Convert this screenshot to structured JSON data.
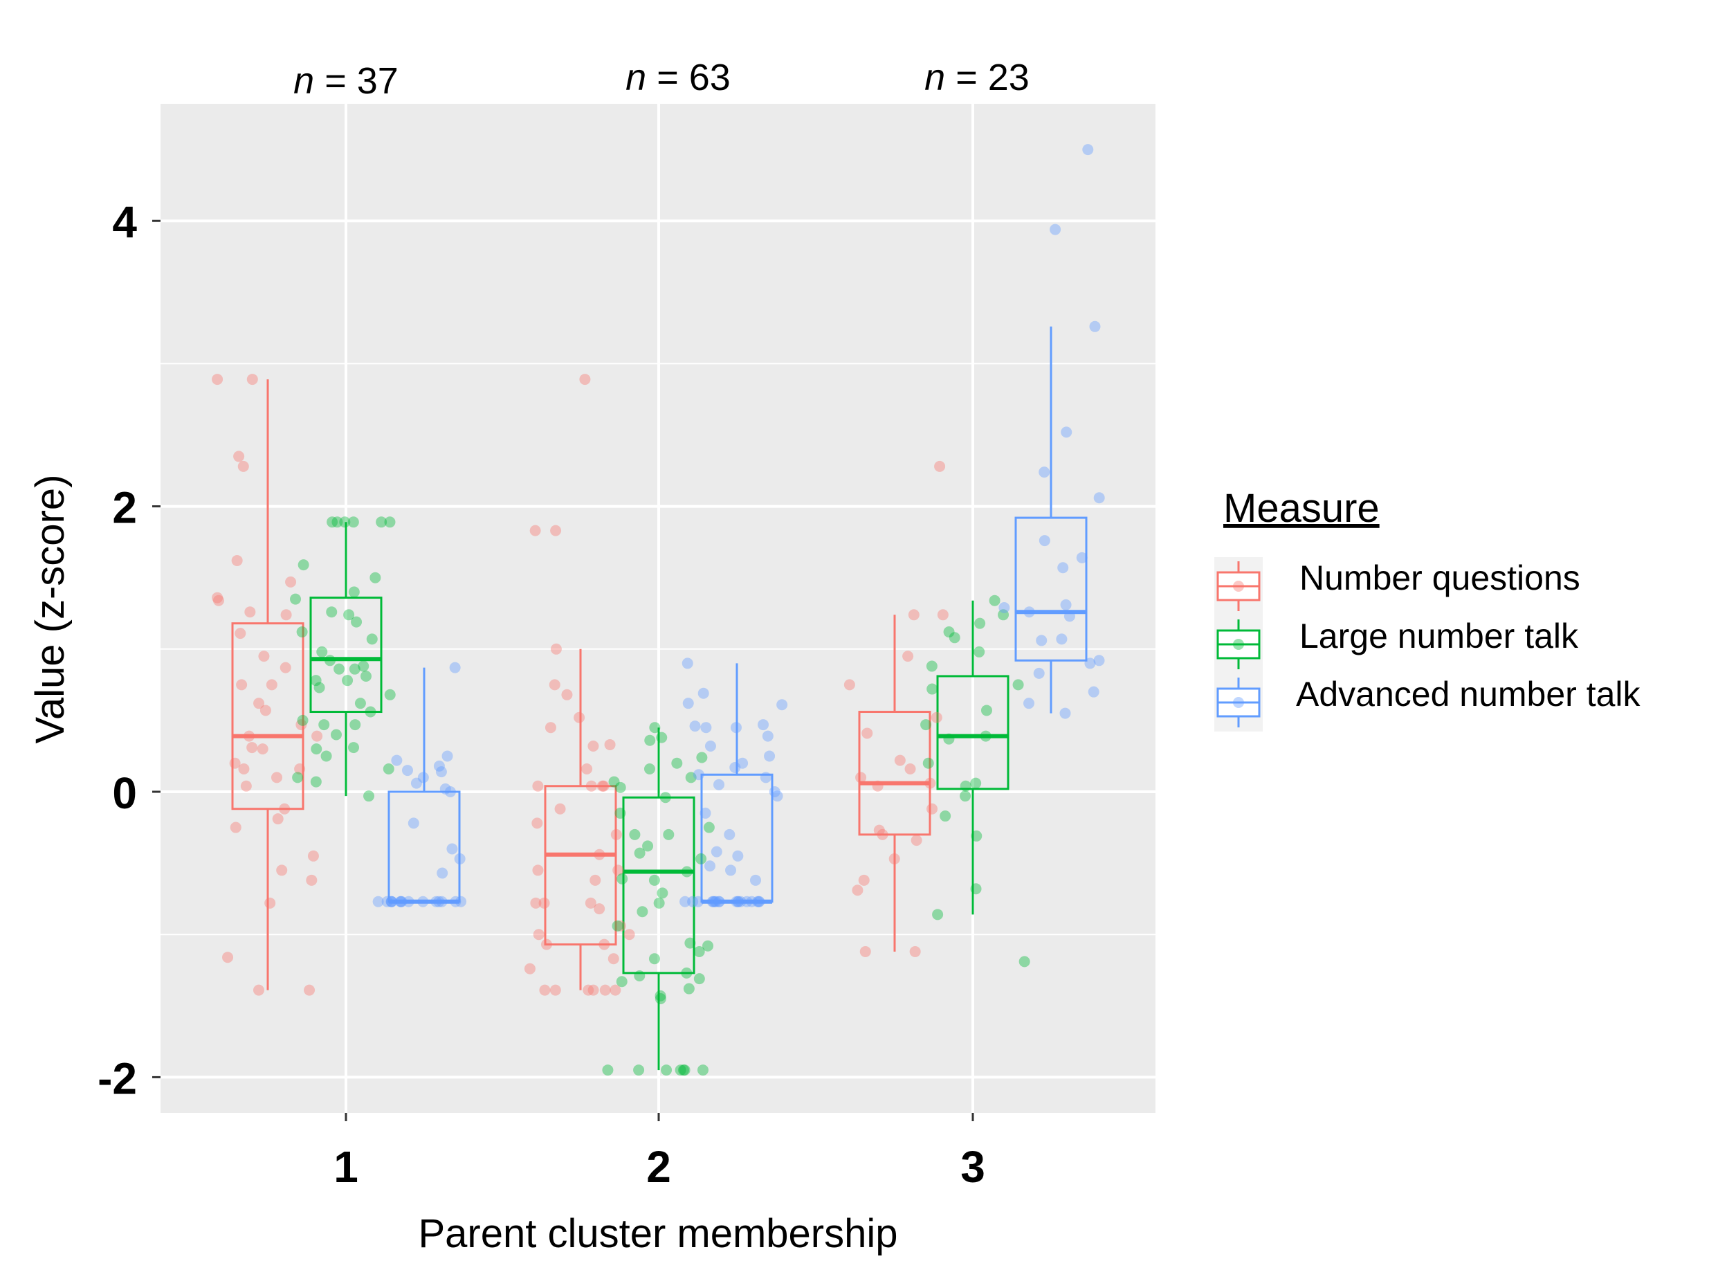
{
  "chart_data": {
    "type": "boxplot",
    "xlabel": "Parent cluster membership",
    "ylabel": "Value (z-score)",
    "categories": [
      "1",
      "2",
      "3"
    ],
    "y_ticks": [
      "4",
      "2",
      "0",
      "-2"
    ],
    "ylim": [
      -2.3,
      4.8
    ],
    "grid": true,
    "group_labels": [
      {
        "prefix": "n",
        "text": " = 37"
      },
      {
        "prefix": "n",
        "text": " = 63"
      },
      {
        "prefix": "n",
        "text": " = 23"
      }
    ],
    "legend": {
      "title": "Measure",
      "position": "right",
      "items": [
        "Number questions",
        "Large number talk",
        "Advanced number talk"
      ]
    },
    "series": [
      {
        "name": "Number questions",
        "color": "#F8766D",
        "boxes": [
          {
            "q1": -0.12,
            "median": 0.39,
            "q3": 1.18,
            "whisker_low": -1.39,
            "whisker_high": 2.89
          },
          {
            "q1": -1.07,
            "median": -0.44,
            "q3": 0.04,
            "whisker_low": -1.39,
            "whisker_high": 1.0
          },
          {
            "q1": -0.3,
            "median": 0.06,
            "q3": 0.56,
            "whisker_low": -1.12,
            "whisker_high": 1.24
          }
        ],
        "points": [
          [
            [
              -1.39,
              2.89,
              2.89,
              2.35,
              2.28,
              1.62,
              1.47,
              1.36,
              1.34,
              1.26,
              1.24,
              1.11,
              0.95,
              0.87,
              0.75,
              0.75,
              0.62,
              0.57,
              0.39,
              0.39,
              0.31,
              0.2,
              0.16,
              0.16,
              0.1,
              0.04,
              -0.12,
              -0.19,
              -0.25,
              -0.45,
              -0.55,
              -0.62,
              -0.78,
              -1.16,
              -1.39,
              0.47,
              0.3
            ]
          ],
          [
            [
              2.89,
              1.83,
              1.83,
              1.0,
              0.75,
              0.68,
              0.52,
              0.45,
              0.33,
              0.32,
              0.16,
              0.04,
              0.04,
              0.04,
              0.04,
              -0.12,
              -0.22,
              -0.3,
              -0.44,
              -0.55,
              -0.55,
              -0.62,
              -0.78,
              -0.78,
              -0.78,
              -0.82,
              -0.94,
              -1.0,
              -1.0,
              -1.07,
              -1.07,
              -1.17,
              -1.24,
              -1.39,
              -1.39,
              -1.39,
              -1.39,
              -1.39,
              -1.39
            ]
          ],
          [
            [
              2.28,
              1.24,
              1.24,
              0.95,
              0.75,
              0.52,
              0.41,
              0.22,
              0.16,
              0.1,
              0.06,
              0.04,
              -0.12,
              -0.27,
              -0.3,
              -0.34,
              -0.47,
              -0.62,
              -0.69,
              -1.12,
              -1.12
            ]
          ]
        ]
      },
      {
        "name": "Large number talk",
        "color": "#00BA38",
        "boxes": [
          {
            "q1": 0.56,
            "median": 0.93,
            "q3": 1.36,
            "whisker_low": -0.03,
            "whisker_high": 1.89
          },
          {
            "q1": -1.27,
            "median": -0.56,
            "q3": -0.04,
            "whisker_low": -1.95,
            "whisker_high": 0.45
          },
          {
            "q1": 0.02,
            "median": 0.39,
            "q3": 0.81,
            "whisker_low": -0.86,
            "whisker_high": 1.34
          }
        ],
        "points": [
          [
            [
              1.89,
              1.89,
              1.89,
              1.89,
              1.89,
              1.89,
              1.59,
              1.5,
              1.4,
              1.35,
              1.26,
              1.24,
              1.19,
              1.12,
              1.07,
              0.98,
              0.92,
              0.88,
              0.86,
              0.86,
              0.81,
              0.78,
              0.78,
              0.73,
              0.68,
              0.62,
              0.56,
              0.5,
              0.47,
              0.47,
              0.4,
              0.31,
              0.3,
              0.25,
              0.16,
              0.1,
              0.07,
              -0.03
            ]
          ],
          [
            [
              0.45,
              0.38,
              0.36,
              0.24,
              0.2,
              0.16,
              0.1,
              0.07,
              0.03,
              -0.04,
              -0.15,
              -0.25,
              -0.3,
              -0.3,
              -0.38,
              -0.43,
              -0.47,
              -0.56,
              -0.61,
              -0.62,
              -0.71,
              -0.78,
              -0.84,
              -0.94,
              -1.06,
              -1.08,
              -1.12,
              -1.17,
              -1.27,
              -1.29,
              -1.31,
              -1.33,
              -1.38,
              -1.43,
              -1.45,
              -1.95,
              -1.95,
              -1.95,
              -1.95,
              -1.95,
              -1.95,
              -1.95
            ]
          ],
          [
            [
              1.34,
              1.24,
              1.18,
              1.12,
              1.08,
              0.98,
              0.88,
              0.75,
              0.72,
              0.57,
              0.47,
              0.39,
              0.37,
              0.2,
              0.06,
              0.04,
              -0.03,
              -0.17,
              -0.31,
              -0.68,
              -0.86,
              -1.19
            ]
          ]
        ]
      },
      {
        "name": "Advanced number talk",
        "color": "#619CFF",
        "boxes": [
          {
            "q1": -0.77,
            "median": -0.77,
            "q3": 0.0,
            "whisker_low": -0.77,
            "whisker_high": 0.87
          },
          {
            "q1": -0.77,
            "median": -0.77,
            "q3": 0.12,
            "whisker_low": -0.77,
            "whisker_high": 0.9
          },
          {
            "q1": 0.92,
            "median": 1.26,
            "q3": 1.92,
            "whisker_low": 0.55,
            "whisker_high": 3.26
          }
        ],
        "points": [
          [
            [
              0.87,
              0.25,
              0.22,
              0.18,
              0.15,
              0.14,
              0.1,
              0.06,
              0.02,
              -0.0,
              -0.22,
              -0.4,
              -0.47,
              -0.57,
              -0.77,
              -0.77,
              -0.77,
              -0.77,
              -0.77,
              -0.77,
              -0.77,
              -0.77,
              -0.77,
              -0.77,
              -0.77,
              -0.77,
              -0.77,
              -0.77,
              -0.77
            ]
          ],
          [
            [
              0.9,
              0.69,
              0.62,
              0.61,
              0.47,
              0.46,
              0.45,
              0.45,
              0.39,
              0.32,
              0.25,
              0.2,
              0.17,
              0.12,
              0.1,
              0.05,
              0.0,
              -0.03,
              -0.15,
              -0.3,
              -0.42,
              -0.45,
              -0.52,
              -0.55,
              -0.62,
              -0.77,
              -0.77,
              -0.77,
              -0.77,
              -0.77,
              -0.77,
              -0.77,
              -0.77,
              -0.77,
              -0.77,
              -0.77,
              -0.77,
              -0.77,
              -0.77,
              -0.77,
              -0.77,
              -0.77,
              -0.77
            ]
          ],
          [
            [
              4.5,
              3.94,
              3.26,
              2.52,
              2.24,
              2.06,
              1.76,
              1.64,
              1.57,
              1.31,
              1.29,
              1.26,
              1.23,
              1.07,
              1.06,
              0.92,
              0.9,
              0.83,
              0.7,
              0.62,
              0.55
            ]
          ]
        ]
      }
    ]
  }
}
